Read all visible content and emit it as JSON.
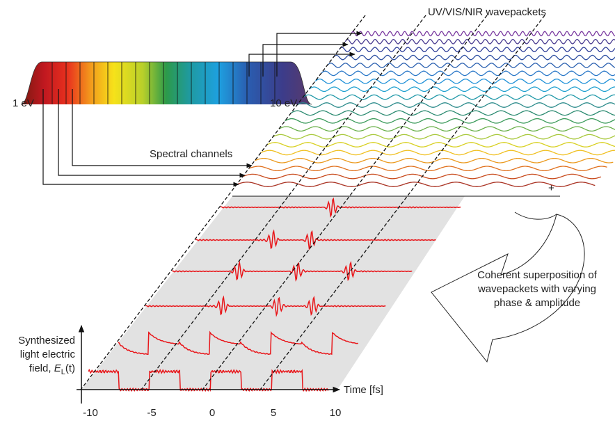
{
  "wavepackets_label": "UV/VIS/NIR wavepackets",
  "spectrum": {
    "low_label": "1 eV",
    "high_label": "10 eV"
  },
  "channels_label": "Spectral channels",
  "plus": "+",
  "superposition_label": [
    "Coherent superposition of",
    "wavepackets with varying",
    "phase & amplitude"
  ],
  "y_axis": {
    "label_lines": [
      "Synthesized",
      "light electric",
      "field, "
    ],
    "symbol": "E",
    "symbol_sub": "L",
    "argument": "(t)"
  },
  "x_axis": {
    "label": "Time [fs]",
    "ticks": [
      "-10",
      "-5",
      "0",
      "5",
      "10"
    ]
  }
}
